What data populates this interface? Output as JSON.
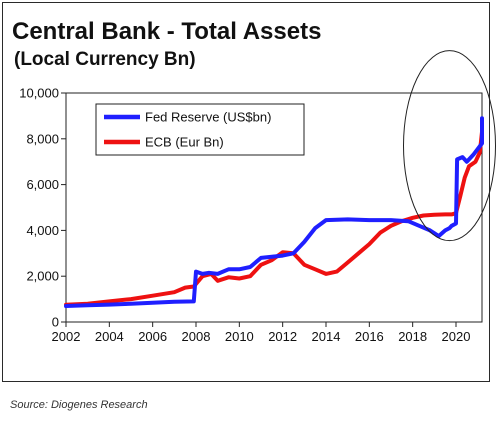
{
  "chart_data": {
    "type": "line",
    "title": "Central Bank - Total Assets",
    "subtitle": "(Local Currency Bn)",
    "xlabel": "",
    "ylabel": "",
    "xlim": [
      2002,
      2021.2
    ],
    "ylim": [
      0,
      10000
    ],
    "x_ticks": [
      2002,
      2004,
      2006,
      2008,
      2010,
      2012,
      2014,
      2016,
      2018,
      2020
    ],
    "y_ticks": [
      0,
      2000,
      4000,
      6000,
      8000,
      10000
    ],
    "y_tick_labels": [
      "0",
      "2,000",
      "4,000",
      "6,000",
      "8,000",
      "10,000"
    ],
    "grid": false,
    "legend_position": "top-left",
    "annotation": "ellipse highlighting 2019-2021 balance sheet surge",
    "series": [
      {
        "name": "Fed Reserve (US$bn)",
        "color": "#1f1fff",
        "points": [
          [
            2002,
            700
          ],
          [
            2003,
            730
          ],
          [
            2004,
            760
          ],
          [
            2005,
            800
          ],
          [
            2006,
            840
          ],
          [
            2007,
            880
          ],
          [
            2007.9,
            900
          ],
          [
            2008.0,
            2200
          ],
          [
            2008.3,
            2100
          ],
          [
            2008.6,
            2150
          ],
          [
            2009,
            2100
          ],
          [
            2009.5,
            2300
          ],
          [
            2010,
            2300
          ],
          [
            2010.5,
            2400
          ],
          [
            2011,
            2800
          ],
          [
            2011.5,
            2850
          ],
          [
            2012,
            2900
          ],
          [
            2012.5,
            3000
          ],
          [
            2013,
            3500
          ],
          [
            2013.5,
            4100
          ],
          [
            2014,
            4450
          ],
          [
            2015,
            4480
          ],
          [
            2016,
            4450
          ],
          [
            2017,
            4450
          ],
          [
            2017.8,
            4400
          ],
          [
            2018.3,
            4200
          ],
          [
            2018.8,
            4000
          ],
          [
            2019.2,
            3750
          ],
          [
            2019.5,
            4000
          ],
          [
            2019.7,
            4100
          ],
          [
            2019.8,
            4200
          ],
          [
            2020.0,
            4300
          ],
          [
            2020.05,
            7100
          ],
          [
            2020.3,
            7200
          ],
          [
            2020.5,
            7000
          ],
          [
            2020.8,
            7300
          ],
          [
            2021.2,
            7800
          ],
          [
            2021.5,
            8200
          ],
          [
            2021.9,
            8800
          ],
          [
            2021.2,
            8900
          ]
        ]
      },
      {
        "name": "ECB (Eur Bn)",
        "color": "#ee1111",
        "points": [
          [
            2002,
            750
          ],
          [
            2003,
            800
          ],
          [
            2004,
            900
          ],
          [
            2005,
            1000
          ],
          [
            2006,
            1150
          ],
          [
            2007,
            1300
          ],
          [
            2007.5,
            1500
          ],
          [
            2007.9,
            1550
          ],
          [
            2008.3,
            2000
          ],
          [
            2008.7,
            2100
          ],
          [
            2009,
            1800
          ],
          [
            2009.5,
            1950
          ],
          [
            2010,
            1900
          ],
          [
            2010.5,
            2000
          ],
          [
            2011,
            2500
          ],
          [
            2011.5,
            2700
          ],
          [
            2012,
            3050
          ],
          [
            2012.5,
            3000
          ],
          [
            2013,
            2500
          ],
          [
            2013.5,
            2300
          ],
          [
            2014,
            2100
          ],
          [
            2014.5,
            2200
          ],
          [
            2015,
            2600
          ],
          [
            2015.5,
            3000
          ],
          [
            2016,
            3400
          ],
          [
            2016.5,
            3900
          ],
          [
            2017,
            4200
          ],
          [
            2017.5,
            4400
          ],
          [
            2018,
            4550
          ],
          [
            2018.5,
            4650
          ],
          [
            2019,
            4680
          ],
          [
            2019.5,
            4700
          ],
          [
            2019.8,
            4700
          ],
          [
            2020.0,
            4750
          ],
          [
            2020.2,
            5500
          ],
          [
            2020.4,
            6300
          ],
          [
            2020.6,
            6800
          ],
          [
            2020.9,
            7000
          ],
          [
            2021.1,
            7400
          ],
          [
            2021.2,
            8300
          ]
        ]
      }
    ]
  },
  "source": "Source: Diogenes Research"
}
